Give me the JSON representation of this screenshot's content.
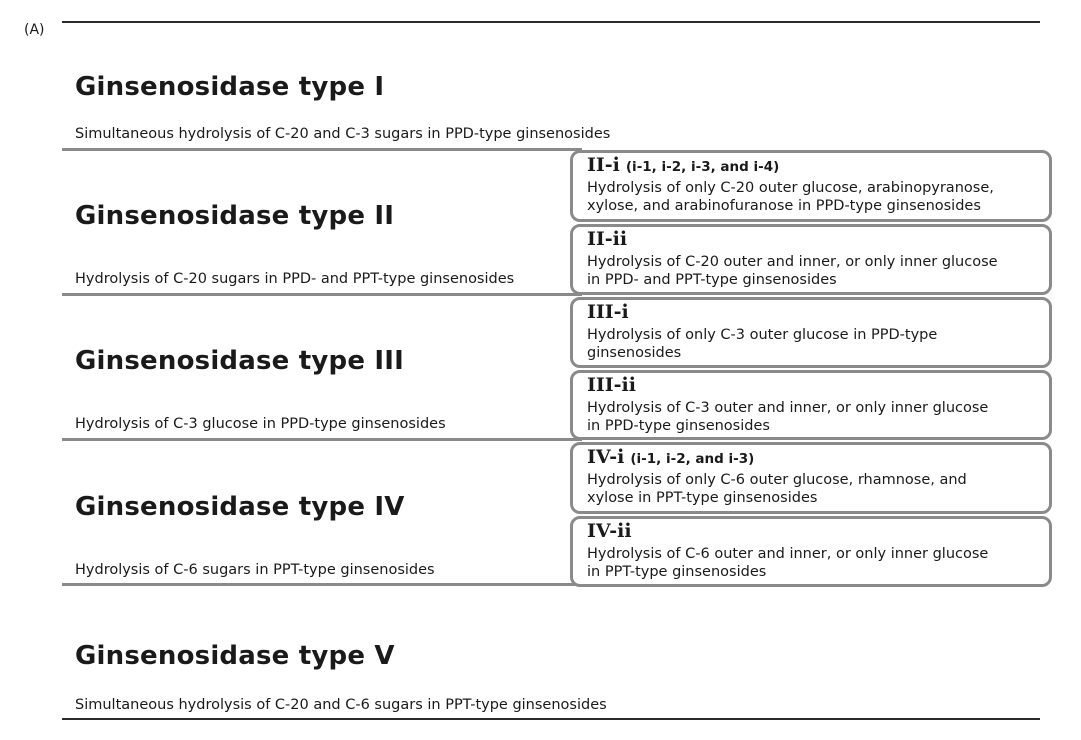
{
  "panel_label": "(A)",
  "types": [
    {
      "title": "Ginsenosidase type I",
      "desc": "Simultaneous hydrolysis of C-20 and C-3 sugars in PPD-type ginsenosides"
    },
    {
      "title": "Ginsenosidase type II",
      "desc": "Hydrolysis of C-20 sugars in PPD- and PPT-type ginsenosides"
    },
    {
      "title": "Ginsenosidase type III",
      "desc": "Hydrolysis of C-3 glucose in PPD-type ginsenosides"
    },
    {
      "title": "Ginsenosidase type IV",
      "desc": "Hydrolysis of C-6 sugars in PPT-type ginsenosides"
    },
    {
      "title": "Ginsenosidase type V",
      "desc": "Simultaneous hydrolysis of C-20 and C-6 sugars in PPT-type ginsenosides"
    }
  ],
  "subtypes": [
    {
      "code": "II-i",
      "note": "(i-1, i-2, i-3, and i-4)",
      "desc": "Hydrolysis of only C-20 outer glucose, arabinopyranose,\nxylose, and arabinofuranose in PPD-type ginsenosides"
    },
    {
      "code": "II-ii",
      "note": "",
      "desc": "Hydrolysis of C-20 outer and inner, or only inner glucose\nin PPD- and PPT-type ginsenosides"
    },
    {
      "code": "III-i",
      "note": "",
      "desc": "Hydrolysis of only C-3 outer glucose in PPD-type\nginsenosides"
    },
    {
      "code": "III-ii",
      "note": "",
      "desc": "Hydrolysis of C-3 outer and inner, or only inner glucose\nin PPD-type ginsenosides"
    },
    {
      "code": "IV-i",
      "note": "(i-1, i-2, and i-3)",
      "desc": "Hydrolysis of only C-6 outer glucose, rhamnose, and\nxylose in PPT-type ginsenosides"
    },
    {
      "code": "IV-ii",
      "note": "",
      "desc": "Hydrolysis of C-6 outer and inner, or only inner glucose\nin PPT-type ginsenosides"
    }
  ]
}
